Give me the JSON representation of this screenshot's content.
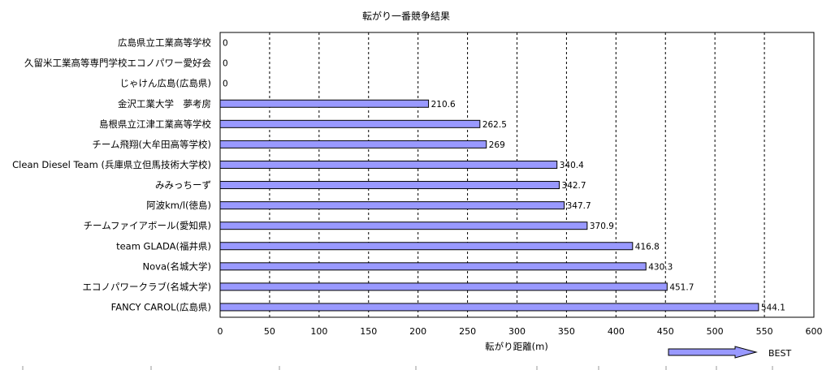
{
  "chart_data": {
    "type": "bar",
    "orientation": "horizontal",
    "title": "転がり一番競争結果",
    "xlabel": "転がり距離(m)",
    "ylabel": "",
    "xlim": [
      0,
      600
    ],
    "xticks": [
      0,
      50,
      100,
      150,
      200,
      250,
      300,
      350,
      400,
      450,
      500,
      550,
      600
    ],
    "grid": "vertical dashed",
    "bar_color": "#9999ff",
    "categories": [
      "広島県立工業高等学校",
      "久留米工業高等専門学校エコノパワー愛好会",
      "じゃけん広島(広島県)",
      "金沢工業大学　夢考房",
      "島根県立江津工業高等学校",
      "チーム飛翔(大牟田高等学校)",
      "Clean Diesel Team (兵庫県立但馬技術大学校)",
      "みみっちーず",
      "阿波km/l(徳島)",
      "チームファイアボール(愛知県)",
      "team GLADA(福井県)",
      "Nova(名城大学)",
      "エコノパワークラブ(名城大学)",
      "FANCY CAROL(広島県)"
    ],
    "values": [
      0,
      0,
      0,
      210.6,
      262.5,
      269,
      340.4,
      342.7,
      347.7,
      370.9,
      416.8,
      430.3,
      451.7,
      544.1
    ],
    "value_labels": [
      "0",
      "0",
      "0",
      "210.6",
      "262.5",
      "269",
      "340.4",
      "342.7",
      "347.7",
      "370.9",
      "416.8",
      "430.3",
      "451.7",
      "544.1"
    ],
    "annotation": {
      "text": "BEST",
      "arrow": "right"
    }
  }
}
